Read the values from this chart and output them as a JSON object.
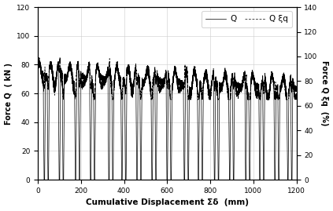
{
  "title": "",
  "xlabel": "Cumulative Displacement Σδ  (mm)",
  "ylabel_left": "Force Q  ( kN )",
  "ylabel_right": "Force Q ξq  (%)",
  "xlim": [
    0,
    1200
  ],
  "ylim_left": [
    0,
    120
  ],
  "ylim_right": [
    0,
    140
  ],
  "xticks": [
    0,
    200,
    400,
    600,
    800,
    1000,
    1200
  ],
  "yticks_left": [
    0,
    20,
    40,
    60,
    80,
    100,
    120
  ],
  "yticks_right": [
    0,
    20,
    40,
    60,
    80,
    100,
    120,
    140
  ],
  "legend_Q": "Q",
  "legend_Qq": "Q ξq",
  "line_color": "#000000",
  "bg_color": "#ffffff",
  "grid_color": "#cccccc",
  "figsize": [
    4.23,
    2.69
  ],
  "dpi": 100
}
